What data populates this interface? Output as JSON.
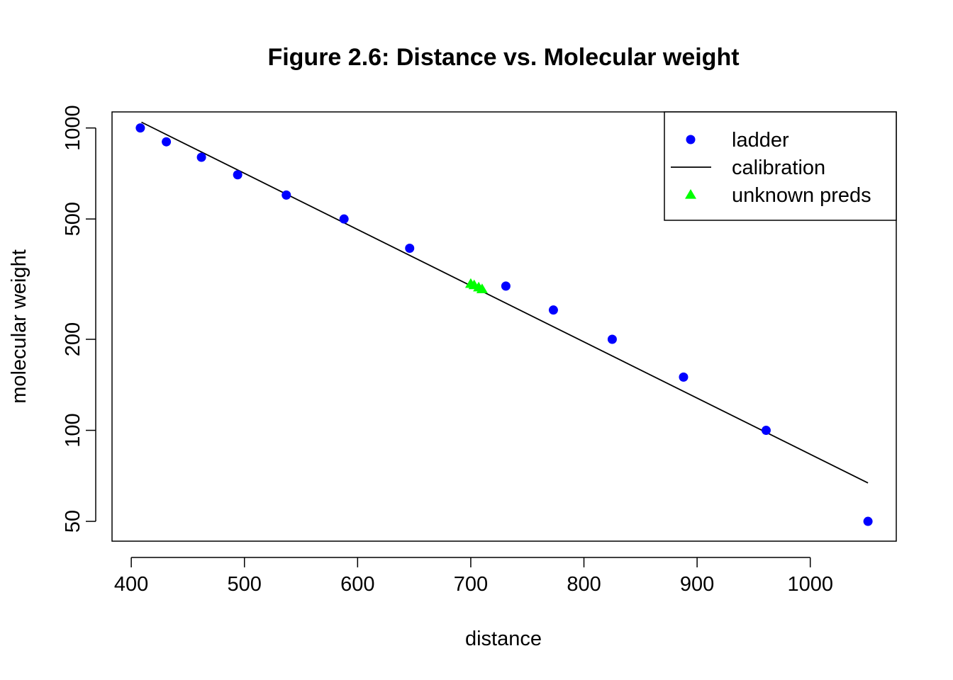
{
  "chart_data": {
    "type": "scatter",
    "title": "Figure 2.6: Distance vs. Molecular weight",
    "xlabel": "distance",
    "ylabel": "molecular weight",
    "xlim": [
      383,
      1076
    ],
    "ylim": [
      43,
      1130
    ],
    "y_scale": "log",
    "x_ticks": [
      400,
      500,
      600,
      700,
      800,
      900,
      1000
    ],
    "x_tick_labels": [
      "400",
      "500",
      "600",
      "700",
      "800",
      "900",
      "1000"
    ],
    "y_ticks": [
      50,
      100,
      200,
      500,
      1000
    ],
    "y_tick_labels": [
      "50",
      "100",
      "200",
      "500",
      "1000"
    ],
    "grid": false,
    "legend_position": "top-right",
    "series": [
      {
        "name": "ladder",
        "kind": "points",
        "marker": "circle",
        "color": "#0000ff",
        "x": [
          408,
          431,
          462,
          494,
          537,
          588,
          646,
          731,
          773,
          825,
          888,
          961,
          1051
        ],
        "y": [
          1000,
          900,
          800,
          700,
          600,
          500,
          400,
          300,
          250,
          200,
          150,
          100,
          50
        ]
      },
      {
        "name": "calibration",
        "kind": "line",
        "color": "#000000",
        "x": [
          409,
          1051
        ],
        "y": [
          1045,
          67
        ]
      },
      {
        "name": "unknown preds",
        "kind": "points",
        "marker": "triangle",
        "color": "#00ff00",
        "x": [
          700,
          703,
          707,
          710
        ],
        "y": [
          305,
          302,
          297,
          293
        ]
      }
    ]
  }
}
